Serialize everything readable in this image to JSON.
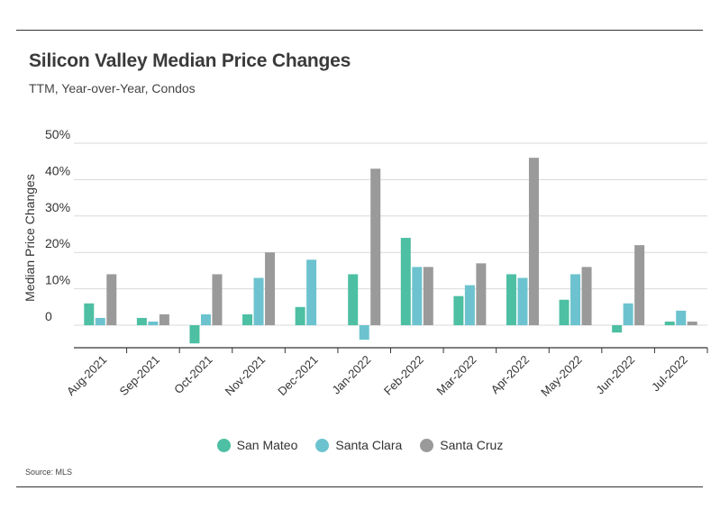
{
  "title": "Silicon Valley Median Price Changes",
  "subtitle": "TTM, Year-over-Year, Condos",
  "source": "Source:  MLS",
  "colors": {
    "San Mateo": "#4dbfa3",
    "Santa Clara": "#6cc3cf",
    "Santa Cruz": "#9a9a9a"
  },
  "chart_data": {
    "type": "bar",
    "title": "Silicon Valley Median Price Changes",
    "subtitle": "TTM, Year-over-Year, Condos",
    "ylabel": "Median Price Changes",
    "xlabel": "",
    "ylim": [
      -5,
      50
    ],
    "yticks": [
      0,
      10,
      20,
      30,
      40,
      50
    ],
    "ytick_labels": [
      "0",
      "10%",
      "20%",
      "30%",
      "40%",
      "50%"
    ],
    "grid": true,
    "legend": "bottom",
    "categories": [
      "Aug-2021",
      "Sep-2021",
      "Oct-2021",
      "Nov-2021",
      "Dec-2021",
      "Jan-2022",
      "Feb-2022",
      "Mar-2022",
      "Apr-2022",
      "May-2022",
      "Jun-2022",
      "Jul-2022"
    ],
    "series": [
      {
        "name": "San Mateo",
        "values": [
          6,
          2,
          -5,
          3,
          5,
          14,
          24,
          8,
          14,
          7,
          -2,
          1
        ]
      },
      {
        "name": "Santa Clara",
        "values": [
          2,
          1,
          3,
          13,
          18,
          -4,
          16,
          11,
          13,
          14,
          6,
          4
        ]
      },
      {
        "name": "Santa Cruz",
        "values": [
          14,
          3,
          14,
          20,
          null,
          43,
          16,
          17,
          46,
          16,
          22,
          1
        ]
      }
    ]
  }
}
